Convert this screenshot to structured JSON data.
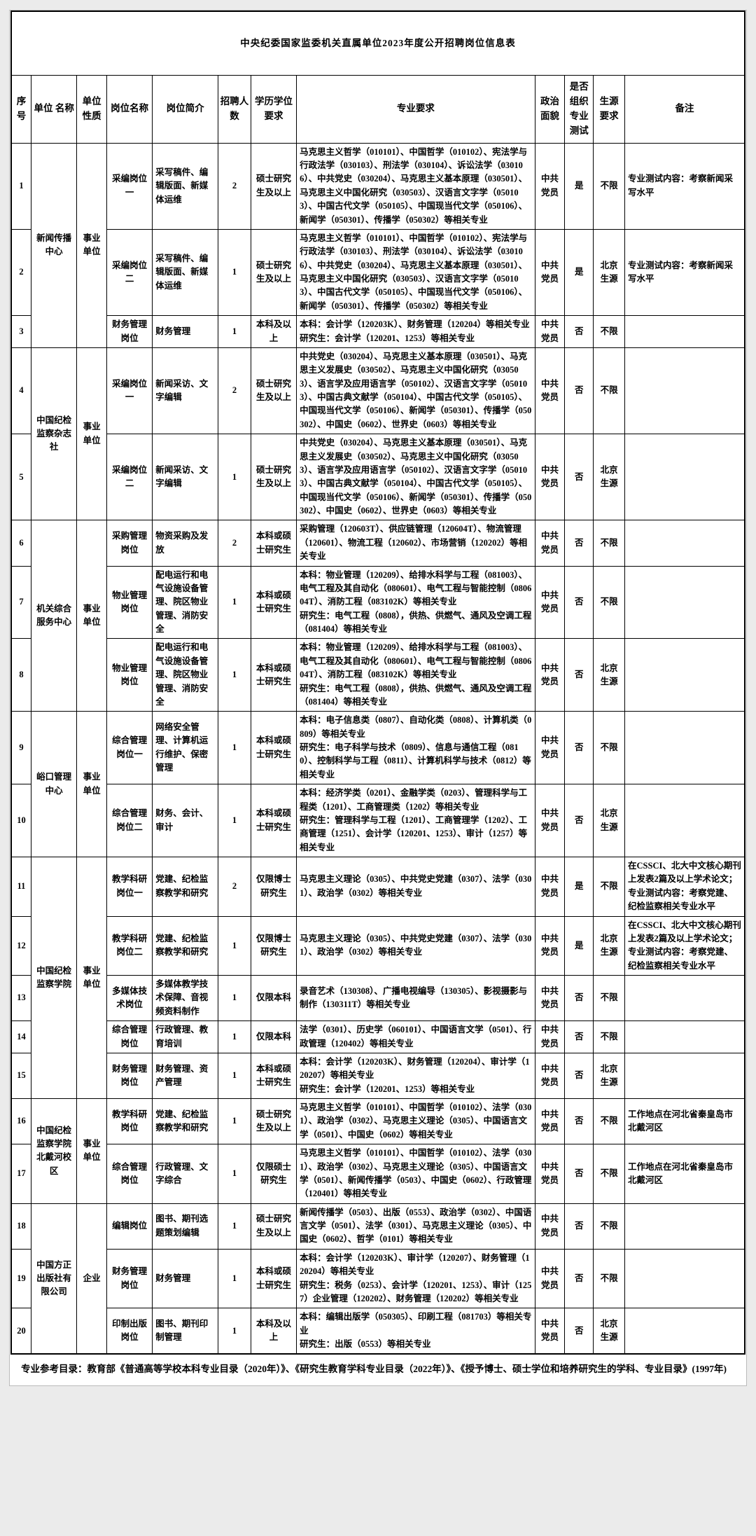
{
  "page": {
    "title": "中央纪委国家监委机关直属单位2023年度公开招聘岗位信息表",
    "footer": "专业参考目录：教育部《普通高等学校本科专业目录（2020年）》、《研究生教育学科专业目录（2022年）》、《授予博士、硕士学位和培养研究生的学科、专业目录》(1997年)"
  },
  "table": {
    "headers": [
      "序号",
      "单位 名称",
      "单位性质",
      "岗位名称",
      "岗位简介",
      "招聘人数",
      "学历学位要求",
      "专业要求",
      "政治面貌",
      "是否组织专业测试",
      "生源要求",
      "备注"
    ],
    "units": [
      {
        "name": "新闻传播中心",
        "type": "事业单位",
        "rows": [
          {
            "no": "1",
            "post": "采编岗位一",
            "desc": "采写稿件、编辑版面、新媒体运维",
            "count": "2",
            "edu": "硕士研究生及以上",
            "major": "马克思主义哲学（010101）、中国哲学（010102）、宪法学与行政法学（030103）、刑法学（030104）、诉讼法学（030106）、中共党史（030204）、马克思主义基本原理（030501）、马克思主义中国化研究（030503）、汉语言文字学（050103）、中国古代文学（050105）、中国现当代文学（050106）、新闻学（050301）、传播学（050302）等相关专业",
            "political": "中共党员",
            "test": "是",
            "origin": "不限",
            "note": "专业测试内容：考察新闻采写水平"
          },
          {
            "no": "2",
            "post": "采编岗位二",
            "desc": "采写稿件、编辑版面、新媒体运维",
            "count": "1",
            "edu": "硕士研究生及以上",
            "major": "马克思主义哲学（010101）、中国哲学（010102）、宪法学与行政法学（030103）、刑法学（030104）、诉讼法学（030106）、中共党史（030204）、马克思主义基本原理（030501）、马克思主义中国化研究（030503）、汉语言文字学（050103）、中国古代文学（050105）、中国现当代文学（050106）、新闻学（050301）、传播学（050302）等相关专业",
            "political": "中共党员",
            "test": "是",
            "origin": "北京生源",
            "note": "专业测试内容：考察新闻采写水平"
          },
          {
            "no": "3",
            "post": "财务管理岗位",
            "desc": "财务管理",
            "count": "1",
            "edu": "本科及以上",
            "major": "本科：会计学（120203K）、财务管理（120204）等相关专业\n研究生：会计学（120201、1253）等相关专业",
            "political": "中共党员",
            "test": "否",
            "origin": "不限",
            "note": ""
          }
        ]
      },
      {
        "name": "中国纪检监察杂志社",
        "type": "事业单位",
        "rows": [
          {
            "no": "4",
            "post": "采编岗位一",
            "desc": "新闻采访、文字编辑",
            "count": "2",
            "edu": "硕士研究生及以上",
            "major": "中共党史（030204）、马克思主义基本原理（030501）、马克思主义发展史（030502）、马克思主义中国化研究（030503）、语言学及应用语言学（050102）、汉语言文字学（050103）、中国古典文献学（050104）、中国古代文学（050105）、中国现当代文学（050106）、新闻学（050301）、传播学（050302）、中国史（0602）、世界史（0603）等相关专业",
            "political": "中共党员",
            "test": "否",
            "origin": "不限",
            "note": ""
          },
          {
            "no": "5",
            "post": "采编岗位二",
            "desc": "新闻采访、文字编辑",
            "count": "1",
            "edu": "硕士研究生及以上",
            "major": "中共党史（030204）、马克思主义基本原理（030501）、马克思主义发展史（030502）、马克思主义中国化研究（030503）、语言学及应用语言学（050102）、汉语言文字学（050103）、中国古典文献学（050104）、中国古代文学（050105）、中国现当代文学（050106）、新闻学（050301）、传播学（050302）、中国史（0602）、世界史（0603）等相关专业",
            "political": "中共党员",
            "test": "否",
            "origin": "北京生源",
            "note": ""
          }
        ]
      },
      {
        "name": "机关综合服务中心",
        "type": "事业单位",
        "rows": [
          {
            "no": "6",
            "post": "采购管理岗位",
            "desc": "物资采购及发放",
            "count": "2",
            "edu": "本科或硕士研究生",
            "major": "采购管理（120603T）、供应链管理（120604T）、物流管理（120601）、物流工程（120602）、市场营销（120202）等相关专业",
            "political": "中共党员",
            "test": "否",
            "origin": "不限",
            "note": ""
          },
          {
            "no": "7",
            "post": "物业管理岗位",
            "desc": "配电运行和电气设施设备管理、院区物业管理、消防安全",
            "count": "1",
            "edu": "本科或硕士研究生",
            "major": "本科：物业管理（120209）、给排水科学与工程（081003）、电气工程及其自动化（080601）、电气工程与智能控制（080604T）、消防工程（083102K）等相关专业\n研究生：电气工程（0808），供热、供燃气、通风及空调工程（081404）等相关专业",
            "political": "中共党员",
            "test": "否",
            "origin": "不限",
            "note": ""
          },
          {
            "no": "8",
            "post": "物业管理岗位",
            "desc": "配电运行和电气设施设备管理、院区物业管理、消防安全",
            "count": "1",
            "edu": "本科或硕士研究生",
            "major": "本科：物业管理（120209）、给排水科学与工程（081003）、电气工程及其自动化（080601）、电气工程与智能控制（080604T）、消防工程（083102K）等相关专业\n研究生：电气工程（0808），供热、供燃气、通风及空调工程（081404）等相关专业",
            "political": "中共党员",
            "test": "否",
            "origin": "北京生源",
            "note": ""
          }
        ]
      },
      {
        "name": "峪口管理中心",
        "type": "事业单位",
        "rows": [
          {
            "no": "9",
            "post": "综合管理岗位一",
            "desc": "网络安全管理、计算机运行维护、保密管理",
            "count": "1",
            "edu": "本科或硕士研究生",
            "major": "本科：电子信息类（0807）、自动化类（0808）、计算机类（0809）等相关专业\n研究生：电子科学与技术（0809）、信息与通信工程（0810）、控制科学与工程（0811）、计算机科学与技术（0812）等相关专业",
            "political": "中共党员",
            "test": "否",
            "origin": "不限",
            "note": ""
          },
          {
            "no": "10",
            "post": "综合管理岗位二",
            "desc": "财务、会计、审计",
            "count": "1",
            "edu": "本科或硕士研究生",
            "major": "本科：经济学类（0201）、金融学类（0203）、管理科学与工程类（1201）、工商管理类（1202）等相关专业\n研究生：管理科学与工程（1201）、工商管理学（1202）、工商管理（1251）、会计学（120201、1253）、审计（1257）等相关专业",
            "political": "中共党员",
            "test": "否",
            "origin": "北京生源",
            "note": ""
          }
        ]
      },
      {
        "name": "中国纪检监察学院",
        "type": "事业单位",
        "rows": [
          {
            "no": "11",
            "post": "教学科研岗位一",
            "desc": "党建、纪检监察教学和研究",
            "count": "2",
            "edu": "仅限博士研究生",
            "major": "马克思主义理论（0305）、中共党史党建（0307）、法学（0301）、政治学（0302）等相关专业",
            "political": "中共党员",
            "test": "是",
            "origin": "不限",
            "note": "在CSSCI、北大中文核心期刊上发表2篇及以上学术论文；专业测试内容：考察党建、纪检监察相关专业水平"
          },
          {
            "no": "12",
            "post": "教学科研岗位二",
            "desc": "党建、纪检监察教学和研究",
            "count": "1",
            "edu": "仅限博士研究生",
            "major": "马克思主义理论（0305）、中共党史党建（0307）、法学（0301）、政治学（0302）等相关专业",
            "political": "中共党员",
            "test": "是",
            "origin": "北京生源",
            "note": "在CSSCI、北大中文核心期刊上发表2篇及以上学术论文；专业测试内容：考察党建、纪检监察相关专业水平"
          },
          {
            "no": "13",
            "post": "多媒体技术岗位",
            "desc": "多媒体教学技术保障、音视频资料制作",
            "count": "1",
            "edu": "仅限本科",
            "major": "录音艺术（130308）、广播电视编导（130305）、影视摄影与制作（130311T）等相关专业",
            "political": "中共党员",
            "test": "否",
            "origin": "不限",
            "note": ""
          },
          {
            "no": "14",
            "post": "综合管理岗位",
            "desc": "行政管理、教育培训",
            "count": "1",
            "edu": "仅限本科",
            "major": "法学（0301）、历史学（060101）、中国语言文学（0501）、行政管理（120402）等相关专业",
            "political": "中共党员",
            "test": "否",
            "origin": "不限",
            "note": ""
          },
          {
            "no": "15",
            "post": "财务管理岗位",
            "desc": "财务管理、资产管理",
            "count": "1",
            "edu": "本科或硕士研究生",
            "major": "本科：会计学（120203K）、财务管理（120204）、审计学（120207）等相关专业\n研究生：会计学（120201、1253）等相关专业",
            "political": "中共党员",
            "test": "否",
            "origin": "北京生源",
            "note": ""
          }
        ]
      },
      {
        "name": "中国纪检监察学院北戴河校区",
        "type": "事业单位",
        "rows": [
          {
            "no": "16",
            "post": "教学科研岗位",
            "desc": "党建、纪检监察教学和研究",
            "count": "1",
            "edu": "硕士研究生及以上",
            "major": "马克思主义哲学（010101）、中国哲学（010102）、法学（0301）、政治学（0302）、马克思主义理论（0305）、中国语言文学（0501）、中国史（0602）等相关专业",
            "political": "中共党员",
            "test": "否",
            "origin": "不限",
            "note": "工作地点在河北省秦皇岛市北戴河区"
          },
          {
            "no": "17",
            "post": "综合管理岗位",
            "desc": "行政管理、文字综合",
            "count": "1",
            "edu": "仅限硕士研究生",
            "major": "马克思主义哲学（010101）、中国哲学（010102）、法学（0301）、政治学（0302）、马克思主义理论（0305）、中国语言文学（0501）、新闻传播学（0503）、中国史（0602）、行政管理（120401）等相关专业",
            "political": "中共党员",
            "test": "否",
            "origin": "不限",
            "note": "工作地点在河北省秦皇岛市北戴河区"
          }
        ]
      },
      {
        "name": "中国方正出版社有限公司",
        "type": "企业",
        "rows": [
          {
            "no": "18",
            "post": "编辑岗位",
            "desc": "图书、期刊选题策划编辑",
            "count": "1",
            "edu": "硕士研究生及以上",
            "major": "新闻传播学（0503）、出版（0553）、政治学（0302）、中国语言文学（0501）、法学（0301）、马克思主义理论（0305）、中国史（0602）、哲学（0101）等相关专业",
            "political": "中共党员",
            "test": "否",
            "origin": "不限",
            "note": ""
          },
          {
            "no": "19",
            "post": "财务管理岗位",
            "desc": "财务管理",
            "count": "1",
            "edu": "本科或硕士研究生",
            "major": "本科：会计学（120203K）、审计学（120207）、财务管理（120204）等相关专业\n研究生：税务（0253）、会计学（120201、1253）、审计（1257）企业管理（120202）、财务管理（120202）等相关专业",
            "political": "中共党员",
            "test": "否",
            "origin": "不限",
            "note": ""
          },
          {
            "no": "20",
            "post": "印制出版岗位",
            "desc": "图书、期刊印制管理",
            "count": "1",
            "edu": "本科及以上",
            "major": "本科：编辑出版学（050305）、印刷工程（081703）等相关专业\n研究生：出版（0553）等相关专业",
            "political": "中共党员",
            "test": "否",
            "origin": "北京生源",
            "note": ""
          }
        ]
      }
    ]
  }
}
